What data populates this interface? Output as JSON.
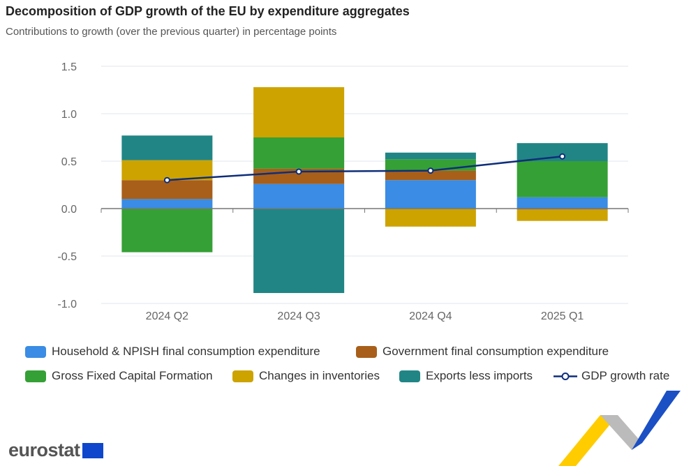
{
  "title": "Decomposition of GDP growth of the EU by expenditure aggregates",
  "subtitle": "Contributions to growth (over the previous quarter) in percentage points",
  "logo_text": "eurostat",
  "chart_data": {
    "type": "bar",
    "stacked": true,
    "categories": [
      "2024 Q2",
      "2024 Q3",
      "2024 Q4",
      "2025 Q1"
    ],
    "ylim": [
      -1.0,
      1.5
    ],
    "yticks": [
      "1.5",
      "1.0",
      "0.5",
      "0.0",
      "-0.5",
      "-1.0"
    ],
    "ytick_values": [
      1.5,
      1.0,
      0.5,
      0.0,
      -0.5,
      -1.0
    ],
    "grid": true,
    "legend_position": "bottom",
    "series": [
      {
        "name": "Household & NPISH final consumption expenditure",
        "color": "#3a8ce4",
        "values": [
          0.1,
          0.26,
          0.3,
          0.12
        ]
      },
      {
        "name": "Government final consumption expenditure",
        "color": "#a85f1a",
        "values": [
          0.2,
          0.16,
          0.1,
          -0.01
        ]
      },
      {
        "name": "Gross Fixed Capital Formation",
        "color": "#35a035",
        "values": [
          -0.46,
          0.33,
          0.12,
          0.38
        ]
      },
      {
        "name": "Changes in inventories",
        "color": "#cda300",
        "values": [
          0.21,
          0.53,
          -0.19,
          -0.12
        ]
      },
      {
        "name": "Exports less imports",
        "color": "#218585",
        "values": [
          0.26,
          -0.89,
          0.07,
          0.19
        ]
      }
    ],
    "line": {
      "name": "GDP growth rate",
      "color": "#0e2e7a",
      "values": [
        0.3,
        0.39,
        0.4,
        0.55
      ]
    }
  }
}
